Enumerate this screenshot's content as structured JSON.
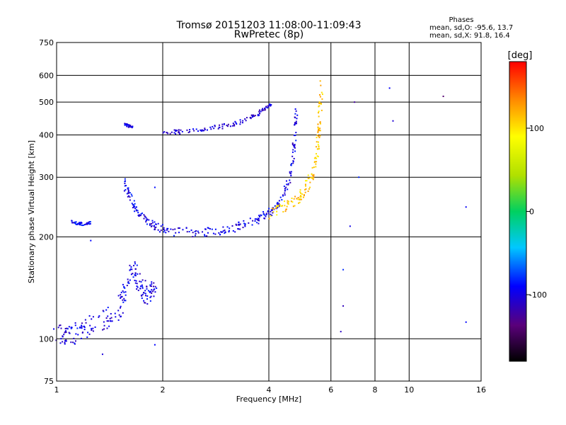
{
  "chart_data": {
    "type": "scatter",
    "title": "Tromsø 20151203 11:08:00-11:09:43",
    "subtitle": "RwPretec (8p)",
    "xlabel": "Frequency [MHz]",
    "ylabel": "Stationary phase Virtual Height [km]",
    "x_scale": "log",
    "y_scale": "log",
    "xlim": [
      1,
      16
    ],
    "ylim": [
      75,
      750
    ],
    "x_ticks": [
      "1",
      "2",
      "4",
      "6",
      "8",
      "10",
      "16"
    ],
    "y_ticks": [
      "75",
      "100",
      "200",
      "300",
      "400",
      "500",
      "600",
      "750"
    ],
    "grid": true,
    "phases_note": {
      "heading": "Phases",
      "line_o": "mean, sd,O: -95.6, 13.7",
      "line_x": "mean, sd,X:  91.8, 16.4"
    },
    "colorbar": {
      "label": "[deg]",
      "range": [
        -180,
        180
      ],
      "ticks": [
        "100",
        "0",
        "-100"
      ],
      "tick_values": [
        100,
        0,
        -100
      ]
    },
    "traces": [
      {
        "points": [
          [
            1.0,
            103
          ],
          [
            1.05,
            101
          ],
          [
            1.1,
            102
          ],
          [
            1.15,
            106
          ],
          [
            1.2,
            108
          ],
          [
            1.3,
            112
          ],
          [
            1.4,
            115
          ],
          [
            1.5,
            120
          ],
          [
            1.55,
            135
          ],
          [
            1.6,
            150
          ],
          [
            1.65,
            160
          ],
          [
            1.7,
            150
          ],
          [
            1.75,
            140
          ],
          [
            1.8,
            135
          ],
          [
            1.85,
            140
          ],
          [
            1.9,
            145
          ]
        ],
        "phase": -100,
        "spread": 0.07
      },
      {
        "points": [
          [
            1.1,
            222
          ],
          [
            1.15,
            219
          ],
          [
            1.2,
            218
          ],
          [
            1.25,
            220
          ]
        ],
        "phase": -95,
        "spread": 0.01
      },
      {
        "points": [
          [
            1.55,
            290
          ],
          [
            1.6,
            270
          ],
          [
            1.65,
            250
          ],
          [
            1.7,
            235
          ],
          [
            1.8,
            225
          ],
          [
            1.9,
            215
          ],
          [
            2.0,
            210
          ],
          [
            2.2,
            207
          ],
          [
            2.5,
            206
          ],
          [
            2.8,
            207
          ],
          [
            3.0,
            210
          ],
          [
            3.3,
            215
          ],
          [
            3.6,
            222
          ],
          [
            3.8,
            228
          ],
          [
            4.0,
            235
          ],
          [
            4.2,
            245
          ],
          [
            4.4,
            265
          ],
          [
            4.6,
            300
          ],
          [
            4.7,
            360
          ],
          [
            4.75,
            420
          ],
          [
            4.8,
            480
          ]
        ],
        "phase": -100,
        "spread": 0.03
      },
      {
        "points": [
          [
            1.55,
            430
          ],
          [
            1.6,
            425
          ],
          [
            1.65,
            420
          ]
        ],
        "phase": -100,
        "spread": 0.01
      },
      {
        "points": [
          [
            2.0,
            410
          ],
          [
            2.2,
            408
          ],
          [
            2.5,
            412
          ],
          [
            2.8,
            420
          ],
          [
            3.1,
            428
          ],
          [
            3.4,
            440
          ],
          [
            3.7,
            460
          ],
          [
            3.9,
            480
          ],
          [
            4.1,
            495
          ]
        ],
        "phase": -105,
        "spread": 0.015
      },
      {
        "points": [
          [
            4.0,
            232
          ],
          [
            4.3,
            240
          ],
          [
            4.6,
            250
          ],
          [
            4.9,
            262
          ],
          [
            5.1,
            278
          ],
          [
            5.3,
            300
          ],
          [
            5.4,
            330
          ],
          [
            5.5,
            370
          ],
          [
            5.55,
            420
          ],
          [
            5.6,
            480
          ],
          [
            5.65,
            560
          ]
        ],
        "phase": 110,
        "spread": 0.04
      },
      {
        "points": [
          [
            6.5,
            160
          ],
          [
            6.8,
            215
          ],
          [
            7.0,
            500
          ],
          [
            7.2,
            300
          ],
          [
            8.8,
            550
          ],
          [
            9.0,
            440
          ],
          [
            12.5,
            520
          ],
          [
            14.5,
            245
          ],
          [
            14.5,
            112
          ],
          [
            6.5,
            125
          ],
          [
            6.4,
            105
          ],
          [
            1.25,
            195
          ],
          [
            1.9,
            280
          ],
          [
            1.9,
            96
          ],
          [
            1.35,
            90
          ]
        ],
        "phase": -110,
        "spread": 0.0
      }
    ]
  }
}
